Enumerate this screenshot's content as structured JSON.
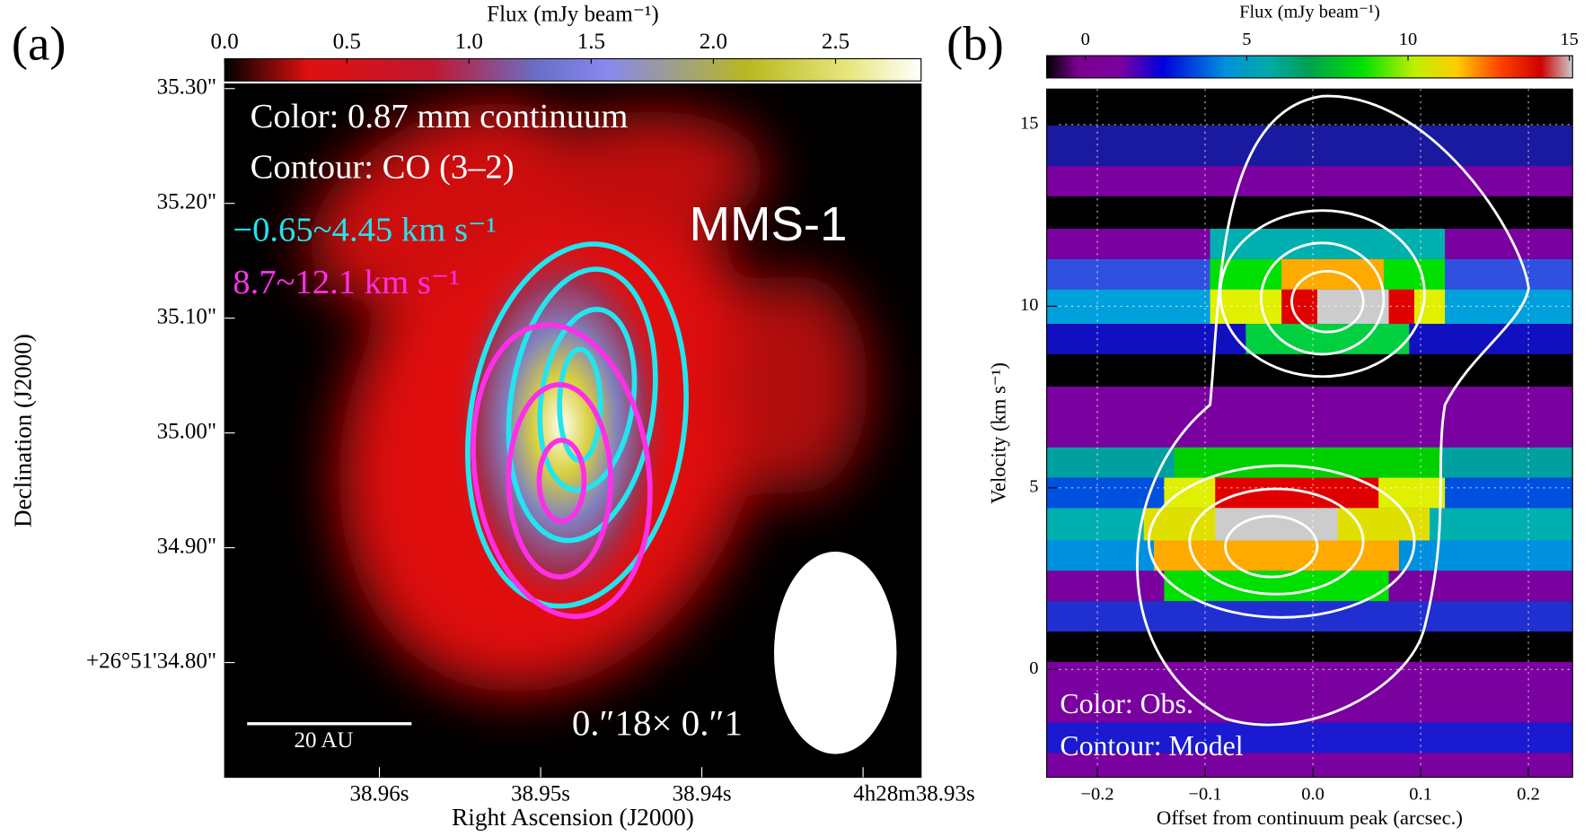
{
  "chart_data": [
    {
      "type": "image",
      "label": "(a)",
      "colorbar_title": "Flux (mJy beam⁻¹)",
      "clim": [
        0,
        2.85
      ],
      "cticks": [
        {
          "value": 0,
          "label": "0.0"
        },
        0.5,
        {
          "value": 1,
          "label": "1.0"
        },
        1.5,
        {
          "value": 2,
          "label": "2.0"
        },
        2.5
      ],
      "xlabel": "Right Ascension (J2000)",
      "ylabel": "Declination (J2000)",
      "xlim": [
        38.9696,
        38.9264
      ],
      "ylim": [
        34.7,
        35.304
      ],
      "xticks": [
        {
          "value": 38.96,
          "label": "38.96s"
        },
        {
          "value": 38.95,
          "label": "38.95s"
        },
        {
          "value": 38.94,
          "label": "38.94s"
        },
        {
          "value": 38.93,
          "label": "4h28m38.93s"
        }
      ],
      "yticks": [
        {
          "value": 35.3,
          "label": "35.30\""
        },
        {
          "value": 35.2,
          "label": "35.20\""
        },
        {
          "value": 35.1,
          "label": "35.10\""
        },
        {
          "value": 35.0,
          "label": "35.00\""
        },
        {
          "value": 34.9,
          "label": "34.90\""
        },
        {
          "value": 34.8,
          "label": "+26°51'34.80\""
        }
      ],
      "grid": false,
      "annotations": [
        {
          "text": "Color: 0.87 mm continuum",
          "color": "#ffffff"
        },
        {
          "text": "Contour: CO (3–2)",
          "color": "#ffffff"
        },
        {
          "text": "−0.65~4.45 km s⁻¹",
          "color": "#22e5f0"
        },
        {
          "text": "8.7~12.1 km s⁻¹",
          "color": "#ff2fe8"
        },
        {
          "text": "MMS-1",
          "color": "#ffffff"
        },
        {
          "text": "20 AU",
          "color": "#ffffff"
        },
        {
          "text": "0.″18× 0.″1",
          "color": "#ffffff"
        }
      ]
    },
    {
      "type": "image",
      "label": "(b)",
      "colorbar_title": "Flux (mJy beam⁻¹)",
      "clim": [
        -1.2,
        15.1
      ],
      "cticks": [
        0,
        5,
        10,
        15
      ],
      "xlabel": "Offset from continuum peak (arcsec.)",
      "ylabel": "Velocity (km s⁻¹)",
      "xlim": [
        -0.247,
        0.241
      ],
      "ylim": [
        -2.97,
        15.98
      ],
      "xticks": [
        {
          "value": -0.2,
          "label": "−0.2"
        },
        {
          "value": -0.1,
          "label": "−0.1"
        },
        {
          "value": 0,
          "label": "0.0"
        },
        0.1,
        0.2
      ],
      "yticks": [
        0,
        5,
        10,
        15
      ],
      "grid": true,
      "annotations": [
        {
          "text": "Color: Obs.",
          "color": "#ffffff"
        },
        {
          "text": "Contour: Model",
          "color": "#ffffff"
        }
      ]
    }
  ]
}
